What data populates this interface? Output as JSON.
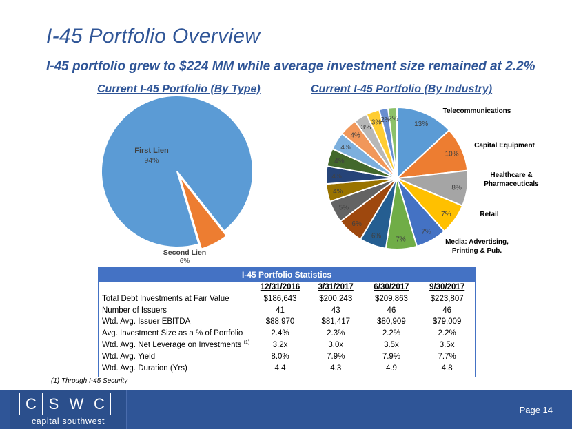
{
  "title": "I-45 Portfolio Overview",
  "subtitle": "I-45 portfolio grew to $224 MM while average investment size remained at 2.2%",
  "chart_data": [
    {
      "type": "pie",
      "title": "Current I-45 Portfolio (By Type)",
      "slices": [
        {
          "label": "First Lien",
          "value": 94,
          "display": "94%",
          "color": "#5b9bd5"
        },
        {
          "label": "Second Lien",
          "value": 6,
          "display": "6%",
          "color": "#ed7d31"
        }
      ]
    },
    {
      "type": "pie",
      "title": "Current I-45 Portfolio (By Industry)",
      "slices": [
        {
          "label": "Telecommunications",
          "value": 13,
          "display": "13%",
          "color": "#5b9bd5"
        },
        {
          "label": "Capital Equipment",
          "value": 10,
          "display": "10%",
          "color": "#ed7d31"
        },
        {
          "label": "Healthcare & Pharmaceuticals",
          "value": 8,
          "display": "8%",
          "color": "#a5a5a5"
        },
        {
          "label": "Retail",
          "value": 7,
          "display": "7%",
          "color": "#ffc000"
        },
        {
          "label": "Media: Advertising, Printing & Pub.",
          "value": 7,
          "display": "7%",
          "color": "#4472c4"
        },
        {
          "label": "",
          "value": 7,
          "display": "7%",
          "color": "#70ad47"
        },
        {
          "label": "",
          "value": 6,
          "display": "6%",
          "color": "#255e91"
        },
        {
          "label": "",
          "value": 6,
          "display": "6%",
          "color": "#9e480e"
        },
        {
          "label": "",
          "value": 5,
          "display": "5%",
          "color": "#636363"
        },
        {
          "label": "",
          "value": 4,
          "display": "4%",
          "color": "#997300"
        },
        {
          "label": "",
          "value": 4,
          "display": "4%",
          "color": "#264478"
        },
        {
          "label": "",
          "value": 4,
          "display": "4%",
          "color": "#43682b"
        },
        {
          "label": "",
          "value": 4,
          "display": "4%",
          "color": "#7cafdd"
        },
        {
          "label": "",
          "value": 4,
          "display": "4%",
          "color": "#f1975a"
        },
        {
          "label": "",
          "value": 3,
          "display": "3%",
          "color": "#b7b7b7"
        },
        {
          "label": "",
          "value": 3,
          "display": "3%",
          "color": "#ffcd33"
        },
        {
          "label": "",
          "value": 2,
          "display": "2%",
          "color": "#698ed0"
        },
        {
          "label": "",
          "value": 2,
          "display": "2%",
          "color": "#8cc168"
        }
      ]
    }
  ],
  "stats": {
    "header": "I-45 Portfolio Statistics",
    "columns": [
      "12/31/2016",
      "3/31/2017",
      "6/30/2017",
      "9/30/2017"
    ],
    "rows": [
      {
        "label": "Total Debt Investments at Fair Value",
        "note": "",
        "values": [
          "$186,643",
          "$200,243",
          "$209,863",
          "$223,807"
        ]
      },
      {
        "label": "Number of Issuers",
        "note": "",
        "values": [
          "41",
          "43",
          "46",
          "46"
        ]
      },
      {
        "label": "Wtd. Avg. Issuer EBITDA",
        "note": "",
        "values": [
          "$88,970",
          "$81,417",
          "$80,909",
          "$79,009"
        ]
      },
      {
        "label": "Avg. Investment Size as a % of Portfolio",
        "note": "",
        "values": [
          "2.4%",
          "2.3%",
          "2.2%",
          "2.2%"
        ]
      },
      {
        "label": "Wtd. Avg. Net Leverage on Investments",
        "note": "(1)",
        "values": [
          "3.2x",
          "3.0x",
          "3.5x",
          "3.5x"
        ]
      },
      {
        "label": "Wtd. Avg. Yield",
        "note": "",
        "values": [
          "8.0%",
          "7.9%",
          "7.9%",
          "7.7%"
        ]
      },
      {
        "label": "Wtd. Avg. Duration (Yrs)",
        "note": "",
        "values": [
          "4.4",
          "4.3",
          "4.9",
          "4.8"
        ]
      }
    ]
  },
  "footnote": "(1) Through I-45 Security",
  "logo": {
    "letters": [
      "C",
      "S",
      "W",
      "C"
    ],
    "text": "capital southwest"
  },
  "page_label": "Page 14"
}
